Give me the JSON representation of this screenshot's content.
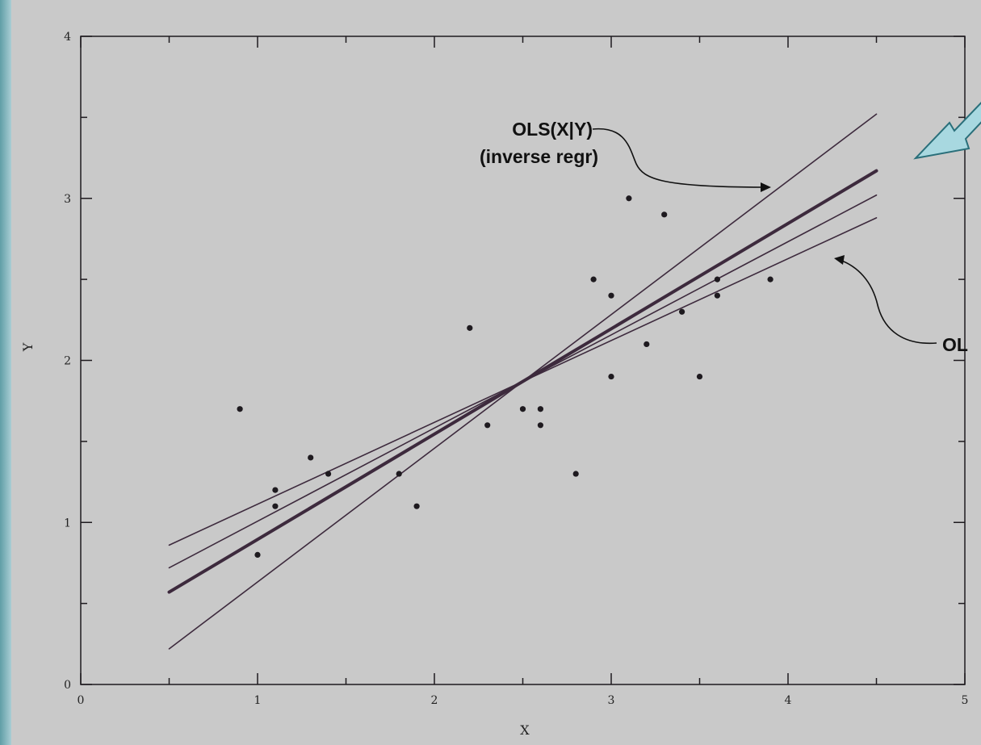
{
  "chart_data": {
    "type": "scatter",
    "xlabel": "X",
    "ylabel": "Y",
    "xlim": [
      0,
      5
    ],
    "ylim": [
      0,
      4
    ],
    "x_ticks": [
      "0",
      "1",
      "2",
      "3",
      "4",
      "5"
    ],
    "y_ticks": [
      "0",
      "1",
      "2",
      "3",
      "4"
    ],
    "grid": false,
    "points": [
      {
        "x": 0.9,
        "y": 1.7
      },
      {
        "x": 1.0,
        "y": 0.8
      },
      {
        "x": 1.1,
        "y": 1.2
      },
      {
        "x": 1.1,
        "y": 1.1
      },
      {
        "x": 1.3,
        "y": 1.4
      },
      {
        "x": 1.4,
        "y": 1.3
      },
      {
        "x": 1.8,
        "y": 1.3
      },
      {
        "x": 1.9,
        "y": 1.1
      },
      {
        "x": 2.2,
        "y": 2.2
      },
      {
        "x": 2.3,
        "y": 1.6
      },
      {
        "x": 2.5,
        "y": 1.7
      },
      {
        "x": 2.6,
        "y": 1.7
      },
      {
        "x": 2.6,
        "y": 1.6
      },
      {
        "x": 2.8,
        "y": 1.3
      },
      {
        "x": 2.9,
        "y": 2.5
      },
      {
        "x": 3.0,
        "y": 2.4
      },
      {
        "x": 3.0,
        "y": 1.9
      },
      {
        "x": 3.1,
        "y": 3.0
      },
      {
        "x": 3.2,
        "y": 2.1
      },
      {
        "x": 3.3,
        "y": 2.9
      },
      {
        "x": 3.4,
        "y": 2.3
      },
      {
        "x": 3.5,
        "y": 1.9
      },
      {
        "x": 3.6,
        "y": 2.5
      },
      {
        "x": 3.6,
        "y": 2.4
      },
      {
        "x": 3.9,
        "y": 2.5
      }
    ],
    "lines": [
      {
        "x": [
          0.5,
          4.5
        ],
        "y": [
          0.22,
          3.52
        ],
        "weight": "thin"
      },
      {
        "x": [
          0.5,
          4.5
        ],
        "y": [
          0.57,
          3.17
        ],
        "weight": "thick"
      },
      {
        "x": [
          0.5,
          4.5
        ],
        "y": [
          0.72,
          3.02
        ],
        "weight": "thin"
      },
      {
        "x": [
          0.5,
          4.5
        ],
        "y": [
          0.86,
          2.88
        ],
        "weight": "thin"
      }
    ],
    "annotations": [
      {
        "lines": [
          "OLS(X|Y)",
          "(inverse regr)"
        ]
      },
      {
        "lines": [
          "OL"
        ]
      }
    ]
  },
  "style": {
    "plot_bg": "#c9c9c9",
    "ink": "#1e1a1f",
    "line_color": "#3d2a3d",
    "arrow_fill": "#a8d8e0",
    "arrow_stroke": "#2a6f7a"
  }
}
